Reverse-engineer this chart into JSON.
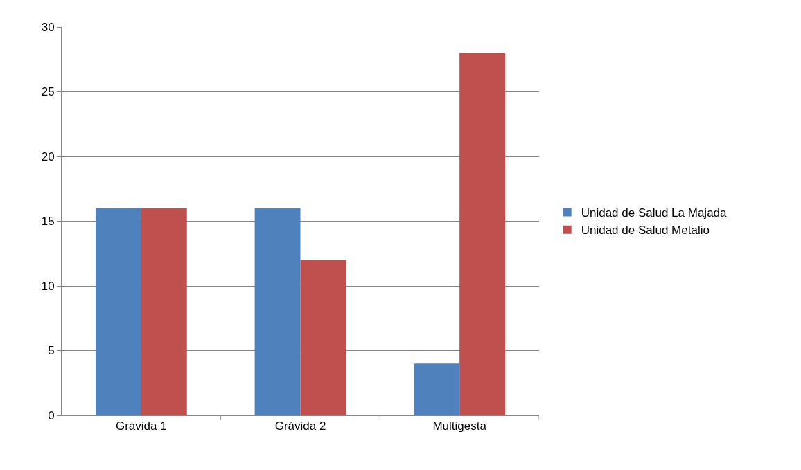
{
  "chart_data": {
    "type": "bar",
    "categories": [
      "Grávida 1",
      "Grávida 2",
      "Multigesta"
    ],
    "series": [
      {
        "name": "Unidad de Salud La Majada",
        "color": "#4f81bd",
        "values": [
          16,
          16,
          4
        ]
      },
      {
        "name": "Unidad de Salud Metalio",
        "color": "#c0504d",
        "values": [
          16,
          12,
          28
        ]
      }
    ],
    "ylim": [
      0,
      30
    ],
    "yticks": [
      0,
      5,
      10,
      15,
      20,
      25,
      30
    ],
    "grid": "y",
    "legend": "right"
  }
}
